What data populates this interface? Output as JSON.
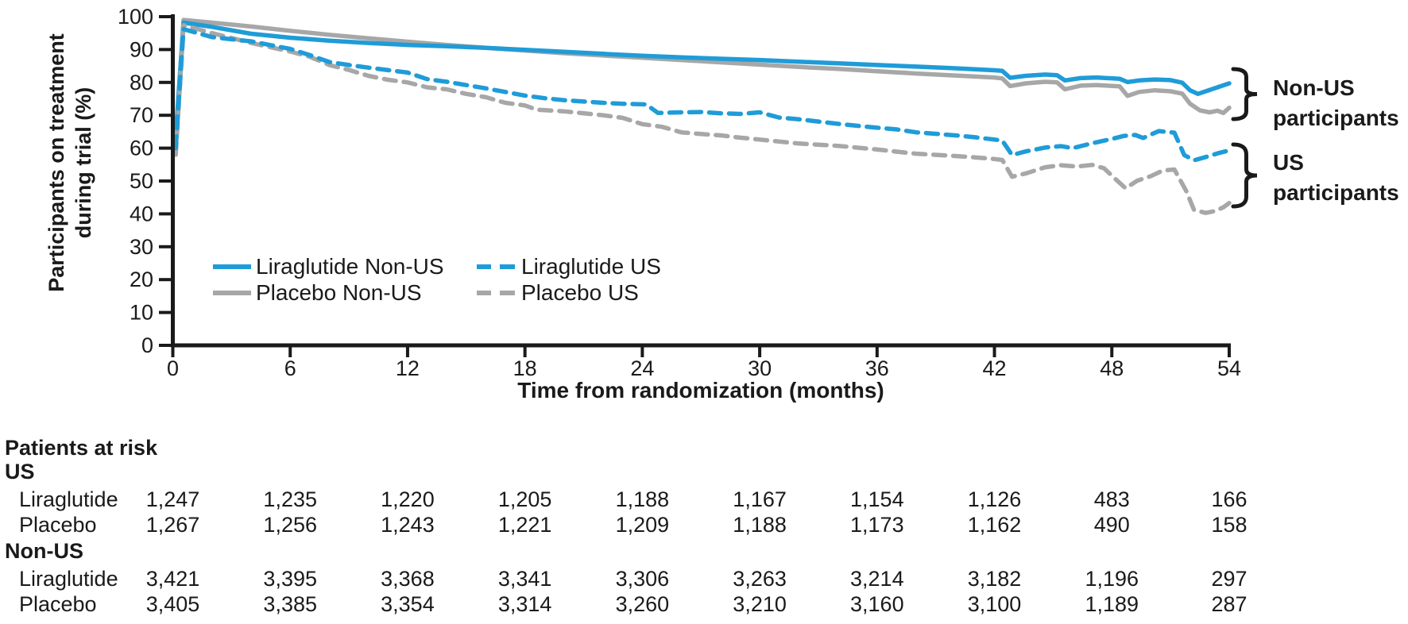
{
  "chart_data": {
    "type": "line",
    "xlabel": "Time from randomization (months)",
    "ylabel_lines": [
      "Participants on treatment",
      "during trial (%)"
    ],
    "xlim": [
      0,
      54
    ],
    "ylim": [
      0,
      100
    ],
    "xticks": [
      0,
      6,
      12,
      18,
      24,
      30,
      36,
      42,
      48,
      54
    ],
    "yticks": [
      0,
      10,
      20,
      30,
      40,
      50,
      60,
      70,
      80,
      90,
      100
    ],
    "grid": false,
    "legend_position": "upper-left-inside",
    "colors": {
      "liraglutide_blue": "#1f9cd8",
      "placebo_gray": "#a7a7a7",
      "axis_black": "#1a1a1a"
    },
    "series": [
      {
        "name": "Liraglutide Non-US",
        "color": "#1f9cd8",
        "style": "solid",
        "points": [
          [
            0.15,
            64
          ],
          [
            0.55,
            98.2
          ],
          [
            2,
            96.9
          ],
          [
            4,
            94.8
          ],
          [
            6,
            93.6
          ],
          [
            8,
            92.7
          ],
          [
            10,
            92.0
          ],
          [
            12,
            91.4
          ],
          [
            14,
            91.0
          ],
          [
            16,
            90.5
          ],
          [
            18,
            89.9
          ],
          [
            20,
            89.3
          ],
          [
            22,
            88.7
          ],
          [
            24,
            88.1
          ],
          [
            26,
            87.6
          ],
          [
            28,
            87.2
          ],
          [
            30,
            86.8
          ],
          [
            32,
            86.3
          ],
          [
            34,
            85.8
          ],
          [
            36,
            85.3
          ],
          [
            38,
            84.8
          ],
          [
            40,
            84.3
          ],
          [
            42,
            83.7
          ],
          [
            42.4,
            83.5
          ],
          [
            42.8,
            81.4
          ],
          [
            43.6,
            82.0
          ],
          [
            44.6,
            82.4
          ],
          [
            45.2,
            82.2
          ],
          [
            45.6,
            80.6
          ],
          [
            46.4,
            81.3
          ],
          [
            47.2,
            81.5
          ],
          [
            48.4,
            81.1
          ],
          [
            48.8,
            80.1
          ],
          [
            49.4,
            80.6
          ],
          [
            50.2,
            80.9
          ],
          [
            51.0,
            80.7
          ],
          [
            51.6,
            79.9
          ],
          [
            52.0,
            77.6
          ],
          [
            52.4,
            76.5
          ],
          [
            52.8,
            77.3
          ],
          [
            53.4,
            78.5
          ],
          [
            54,
            79.7
          ]
        ]
      },
      {
        "name": "Placebo Non-US",
        "color": "#a7a7a7",
        "style": "solid",
        "points": [
          [
            0.15,
            62
          ],
          [
            0.55,
            99.0
          ],
          [
            2,
            98.2
          ],
          [
            4,
            97.0
          ],
          [
            6,
            95.7
          ],
          [
            8,
            94.5
          ],
          [
            10,
            93.4
          ],
          [
            12,
            92.4
          ],
          [
            14,
            91.4
          ],
          [
            16,
            90.5
          ],
          [
            18,
            89.7
          ],
          [
            20,
            88.9
          ],
          [
            22,
            88.2
          ],
          [
            24,
            87.5
          ],
          [
            26,
            86.8
          ],
          [
            28,
            86.1
          ],
          [
            30,
            85.4
          ],
          [
            32,
            84.7
          ],
          [
            34,
            84.1
          ],
          [
            36,
            83.4
          ],
          [
            38,
            82.7
          ],
          [
            40,
            82.1
          ],
          [
            42,
            81.5
          ],
          [
            42.4,
            81.2
          ],
          [
            42.8,
            78.9
          ],
          [
            43.6,
            79.7
          ],
          [
            44.6,
            80.2
          ],
          [
            45.2,
            80.0
          ],
          [
            45.6,
            77.9
          ],
          [
            46.4,
            79.0
          ],
          [
            47.2,
            79.2
          ],
          [
            48.4,
            78.8
          ],
          [
            48.8,
            75.9
          ],
          [
            49.4,
            77.1
          ],
          [
            50.2,
            77.6
          ],
          [
            51.0,
            77.3
          ],
          [
            51.6,
            76.6
          ],
          [
            52.0,
            73.5
          ],
          [
            52.5,
            71.5
          ],
          [
            53.0,
            70.9
          ],
          [
            53.4,
            71.4
          ],
          [
            53.7,
            70.7
          ],
          [
            54,
            72.3
          ]
        ]
      },
      {
        "name": "Liraglutide US",
        "color": "#1f9cd8",
        "style": "dashed",
        "points": [
          [
            0.15,
            60
          ],
          [
            0.55,
            96.2
          ],
          [
            2,
            93.8
          ],
          [
            4,
            92.5
          ],
          [
            6,
            90.2
          ],
          [
            7,
            88.3
          ],
          [
            8,
            86.2
          ],
          [
            9,
            85.3
          ],
          [
            10,
            84.5
          ],
          [
            12,
            83.0
          ],
          [
            13,
            81.0
          ],
          [
            14,
            80.2
          ],
          [
            16,
            78.2
          ],
          [
            18,
            76.0
          ],
          [
            19,
            75.2
          ],
          [
            20,
            74.6
          ],
          [
            22,
            73.8
          ],
          [
            23,
            73.5
          ],
          [
            24.2,
            73.3
          ],
          [
            24.8,
            70.7
          ],
          [
            26,
            70.9
          ],
          [
            27,
            71.0
          ],
          [
            28,
            70.6
          ],
          [
            29,
            70.4
          ],
          [
            30,
            70.9
          ],
          [
            31,
            69.3
          ],
          [
            32,
            68.8
          ],
          [
            34,
            67.4
          ],
          [
            36,
            66.2
          ],
          [
            37,
            65.7
          ],
          [
            38,
            64.8
          ],
          [
            40,
            63.9
          ],
          [
            41,
            63.3
          ],
          [
            42,
            62.6
          ],
          [
            42.4,
            62.3
          ],
          [
            42.9,
            57.9
          ],
          [
            43.6,
            59.0
          ],
          [
            44.6,
            60.2
          ],
          [
            45.4,
            60.6
          ],
          [
            46.0,
            60.0
          ],
          [
            47.0,
            61.5
          ],
          [
            48.0,
            62.8
          ],
          [
            48.6,
            63.7
          ],
          [
            49.2,
            64.0
          ],
          [
            49.6,
            63.1
          ],
          [
            50.4,
            65.2
          ],
          [
            51.2,
            64.7
          ],
          [
            51.7,
            57.9
          ],
          [
            52.2,
            56.3
          ],
          [
            52.8,
            57.3
          ],
          [
            53.4,
            58.4
          ],
          [
            54,
            59.3
          ]
        ]
      },
      {
        "name": "Placebo US",
        "color": "#a7a7a7",
        "style": "dashed",
        "points": [
          [
            0.15,
            58
          ],
          [
            0.55,
            97.4
          ],
          [
            2,
            95.0
          ],
          [
            4,
            92.0
          ],
          [
            6,
            89.4
          ],
          [
            7,
            87.8
          ],
          [
            8,
            85.3
          ],
          [
            9,
            83.8
          ],
          [
            10,
            82.0
          ],
          [
            11,
            80.8
          ],
          [
            12,
            80.0
          ],
          [
            13,
            78.5
          ],
          [
            14,
            77.9
          ],
          [
            15,
            76.5
          ],
          [
            16,
            75.5
          ],
          [
            17,
            73.8
          ],
          [
            18,
            73.0
          ],
          [
            18.6,
            71.7
          ],
          [
            20,
            71.2
          ],
          [
            22,
            70.0
          ],
          [
            23,
            69.2
          ],
          [
            24,
            67.3
          ],
          [
            25,
            66.5
          ],
          [
            26,
            64.8
          ],
          [
            27,
            64.3
          ],
          [
            28,
            63.9
          ],
          [
            29,
            63.2
          ],
          [
            30,
            62.6
          ],
          [
            31,
            62.0
          ],
          [
            32,
            61.4
          ],
          [
            34,
            60.7
          ],
          [
            36,
            59.6
          ],
          [
            37.5,
            58.6
          ],
          [
            38,
            58.3
          ],
          [
            40,
            57.6
          ],
          [
            41,
            57.2
          ],
          [
            42,
            56.7
          ],
          [
            42.4,
            56.4
          ],
          [
            42.9,
            51.3
          ],
          [
            43.6,
            52.3
          ],
          [
            44.6,
            54.2
          ],
          [
            45.4,
            54.8
          ],
          [
            46.2,
            54.4
          ],
          [
            47.0,
            54.9
          ],
          [
            47.6,
            53.9
          ],
          [
            48.2,
            50.5
          ],
          [
            48.7,
            47.8
          ],
          [
            49.3,
            50.1
          ],
          [
            50.0,
            51.5
          ],
          [
            50.6,
            53.2
          ],
          [
            51.2,
            53.5
          ],
          [
            51.8,
            47.0
          ],
          [
            52.2,
            41.2
          ],
          [
            52.8,
            40.3
          ],
          [
            53.3,
            40.9
          ],
          [
            53.7,
            42.0
          ],
          [
            54,
            43.3
          ]
        ]
      }
    ],
    "group_brackets": [
      {
        "label_lines": [
          "Non-US",
          "participants"
        ]
      },
      {
        "label_lines": [
          "US",
          "participants"
        ]
      }
    ]
  },
  "risk_table": {
    "title": "Patients at risk",
    "columns_months": [
      0,
      6,
      12,
      18,
      24,
      30,
      36,
      42,
      48,
      54
    ],
    "groups": [
      {
        "label": "US",
        "rows": [
          {
            "label": "Liraglutide",
            "values": [
              "1,247",
              "1,235",
              "1,220",
              "1,205",
              "1,188",
              "1,167",
              "1,154",
              "1,126",
              "483",
              "166"
            ]
          },
          {
            "label": "Placebo",
            "values": [
              "1,267",
              "1,256",
              "1,243",
              "1,221",
              "1,209",
              "1,188",
              "1,173",
              "1,162",
              "490",
              "158"
            ]
          }
        ]
      },
      {
        "label": "Non-US",
        "rows": [
          {
            "label": "Liraglutide",
            "values": [
              "3,421",
              "3,395",
              "3,368",
              "3,341",
              "3,306",
              "3,263",
              "3,214",
              "3,182",
              "1,196",
              "297"
            ]
          },
          {
            "label": "Placebo",
            "values": [
              "3,405",
              "3,385",
              "3,354",
              "3,314",
              "3,260",
              "3,210",
              "3,160",
              "3,100",
              "1,189",
              "287"
            ]
          }
        ]
      }
    ]
  }
}
